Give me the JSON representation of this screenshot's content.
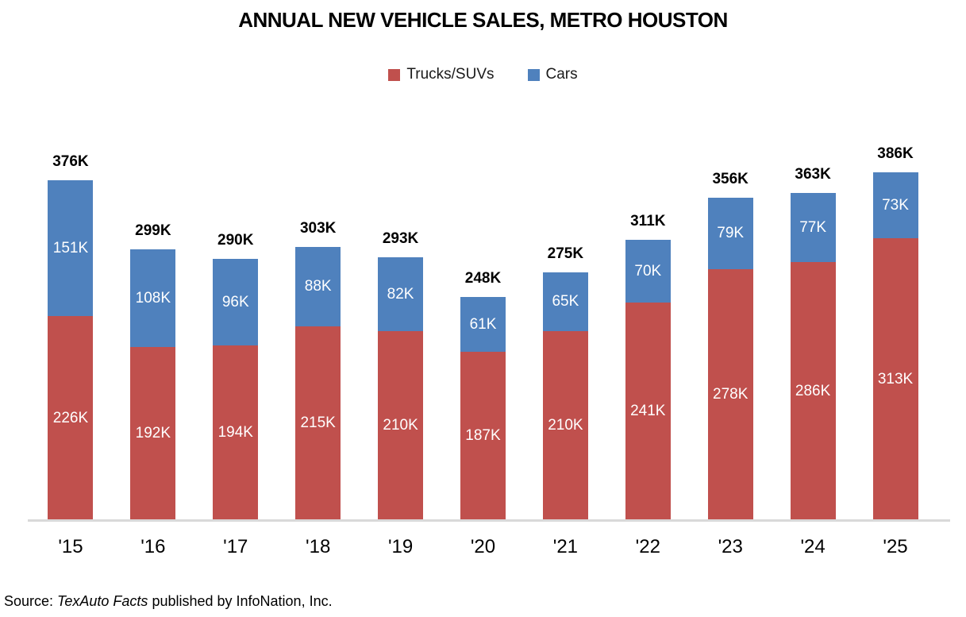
{
  "title": "ANNUAL NEW VEHICLE SALES, METRO HOUSTON",
  "legend": {
    "items": [
      {
        "label": "Trucks/SUVs",
        "color": "#c0504d"
      },
      {
        "label": "Cars",
        "color": "#4f81bd"
      }
    ]
  },
  "source": {
    "prefix": "Source: ",
    "italic": "TexAuto Facts",
    "suffix": " published by InfoNation, Inc."
  },
  "chart_data": {
    "type": "bar",
    "stacked": true,
    "title": "ANNUAL NEW VEHICLE SALES, METRO HOUSTON",
    "xlabel": "",
    "ylabel": "",
    "unit": "thousands of vehicles",
    "ylim": [
      0,
      440
    ],
    "grid": false,
    "legend_position": "top-center",
    "categories": [
      "'15",
      "'16",
      "'17",
      "'18",
      "'19",
      "'20",
      "'21",
      "'22",
      "'23",
      "'24",
      "'25"
    ],
    "series": [
      {
        "name": "Trucks/SUVs",
        "color": "#c0504d",
        "values": [
          226,
          192,
          194,
          215,
          210,
          187,
          210,
          241,
          278,
          286,
          313
        ],
        "labels": [
          "226K",
          "192K",
          "194K",
          "215K",
          "210K",
          "187K",
          "210K",
          "241K",
          "278K",
          "286K",
          "313K"
        ]
      },
      {
        "name": "Cars",
        "color": "#4f81bd",
        "values": [
          151,
          108,
          96,
          88,
          82,
          61,
          65,
          70,
          79,
          77,
          73
        ],
        "labels": [
          "151K",
          "108K",
          "96K",
          "88K",
          "82K",
          "61K",
          "65K",
          "70K",
          "79K",
          "77K",
          "73K"
        ]
      }
    ],
    "totals": [
      376,
      299,
      290,
      303,
      293,
      248,
      275,
      311,
      356,
      363,
      386
    ],
    "total_labels": [
      "376K",
      "299K",
      "290K",
      "303K",
      "293K",
      "248K",
      "275K",
      "311K",
      "356K",
      "363K",
      "386K"
    ]
  }
}
